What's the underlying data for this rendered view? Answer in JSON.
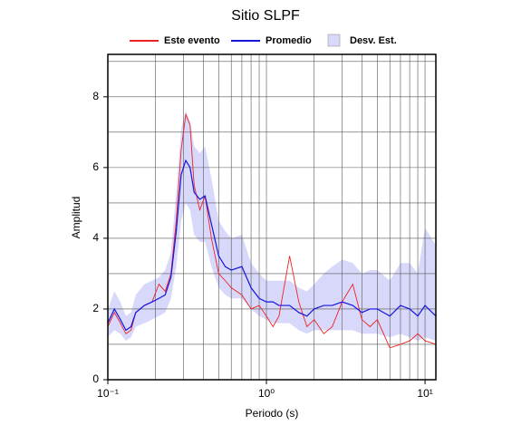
{
  "chart_data": {
    "type": "line",
    "title": "Sitio SLPF",
    "x_label": "Periodo (s)",
    "y_label": "Amplitud",
    "x_log": true,
    "grid": true,
    "legend": "top",
    "xlim": [
      0.1,
      11.7
    ],
    "ylim": [
      0,
      9.2
    ],
    "xticks": [
      {
        "value": 0.1,
        "label": "10⁻¹"
      },
      {
        "value": 1,
        "label": "10⁰"
      },
      {
        "value": 10,
        "label": "10¹"
      }
    ],
    "minor_xticks": [
      0.2,
      0.3,
      0.4,
      0.5,
      0.6,
      0.7,
      0.8,
      0.9,
      2,
      3,
      4,
      5,
      6,
      7,
      8,
      9
    ],
    "yticks": [
      0,
      2,
      4,
      6,
      8
    ],
    "minor_yticks": [
      1,
      3,
      5,
      7,
      9
    ],
    "x": [
      0.1,
      0.11,
      0.12,
      0.13,
      0.14,
      0.15,
      0.17,
      0.19,
      0.21,
      0.23,
      0.25,
      0.27,
      0.29,
      0.31,
      0.33,
      0.35,
      0.38,
      0.41,
      0.45,
      0.5,
      0.55,
      0.6,
      0.7,
      0.8,
      0.9,
      1.0,
      1.1,
      1.2,
      1.4,
      1.6,
      1.8,
      2.0,
      2.3,
      2.6,
      3.0,
      3.5,
      4,
      4.5,
      5,
      6,
      7,
      8,
      9,
      10,
      11.7
    ],
    "band": {
      "name": "Desv. Est.",
      "color": "#d8d8fa",
      "lower": [
        1.2,
        1.4,
        1.3,
        1.1,
        1.2,
        1.5,
        1.6,
        1.7,
        1.8,
        1.9,
        2.3,
        3.2,
        4.5,
        5.0,
        4.8,
        4.1,
        3.9,
        3.9,
        3.2,
        2.6,
        2.4,
        2.3,
        2.3,
        2.0,
        1.8,
        1.7,
        1.6,
        1.6,
        1.6,
        1.4,
        1.3,
        1.4,
        1.4,
        1.4,
        1.4,
        1.4,
        1.3,
        1.3,
        1.3,
        1.2,
        1.3,
        1.2,
        1.1,
        1.2,
        1.1
      ],
      "upper": [
        2.0,
        2.5,
        2.2,
        1.8,
        1.9,
        2.4,
        2.7,
        2.8,
        2.9,
        3.1,
        3.6,
        5.3,
        7.1,
        7.6,
        7.3,
        6.6,
        6.4,
        6.6,
        5.7,
        4.5,
        4.2,
        4.0,
        4.1,
        3.3,
        3.0,
        2.8,
        2.8,
        2.8,
        2.8,
        2.6,
        2.5,
        2.7,
        3.0,
        3.2,
        3.4,
        3.3,
        3.0,
        3.1,
        3.1,
        2.8,
        3.3,
        3.3,
        3.0,
        4.3,
        3.8
      ]
    },
    "series": [
      {
        "name": "Este evento",
        "color": "#ee2222",
        "values": [
          1.5,
          1.9,
          1.6,
          1.3,
          1.4,
          1.9,
          2.1,
          2.2,
          2.7,
          2.5,
          3.0,
          4.5,
          6.5,
          7.5,
          7.2,
          5.5,
          4.8,
          5.2,
          4.0,
          3.0,
          2.8,
          2.6,
          2.4,
          2.0,
          2.1,
          1.8,
          1.5,
          1.8,
          3.5,
          2.2,
          1.5,
          1.7,
          1.3,
          1.5,
          2.2,
          2.7,
          1.7,
          1.5,
          1.7,
          0.9,
          1.0,
          1.1,
          1.3,
          1.1,
          1.0
        ]
      },
      {
        "name": "Promedio",
        "color": "#1515dd",
        "values": [
          1.6,
          2.0,
          1.7,
          1.4,
          1.5,
          1.9,
          2.1,
          2.2,
          2.3,
          2.4,
          2.9,
          4.2,
          5.8,
          6.2,
          6.0,
          5.3,
          5.1,
          5.2,
          4.4,
          3.5,
          3.2,
          3.1,
          3.2,
          2.6,
          2.3,
          2.2,
          2.2,
          2.1,
          2.1,
          1.9,
          1.8,
          2.0,
          2.1,
          2.1,
          2.2,
          2.1,
          1.9,
          2.0,
          2.0,
          1.8,
          2.1,
          2.0,
          1.8,
          2.1,
          1.8
        ]
      }
    ]
  }
}
